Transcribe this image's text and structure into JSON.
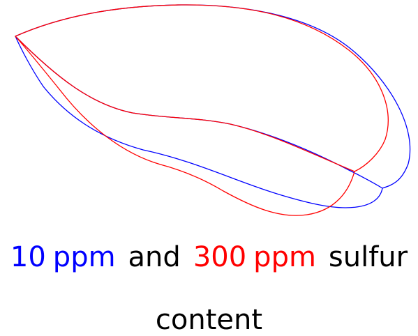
{
  "colors": {
    "series_a": "#0000ff",
    "series_b": "#ff0000",
    "text": "#000000",
    "background": "#ffffff"
  },
  "caption": {
    "a_value": "10",
    "a_unit": "ppm",
    "connector": "and",
    "b_value": "300",
    "b_unit": "ppm",
    "tail": "sulfur",
    "line2": "content"
  }
}
